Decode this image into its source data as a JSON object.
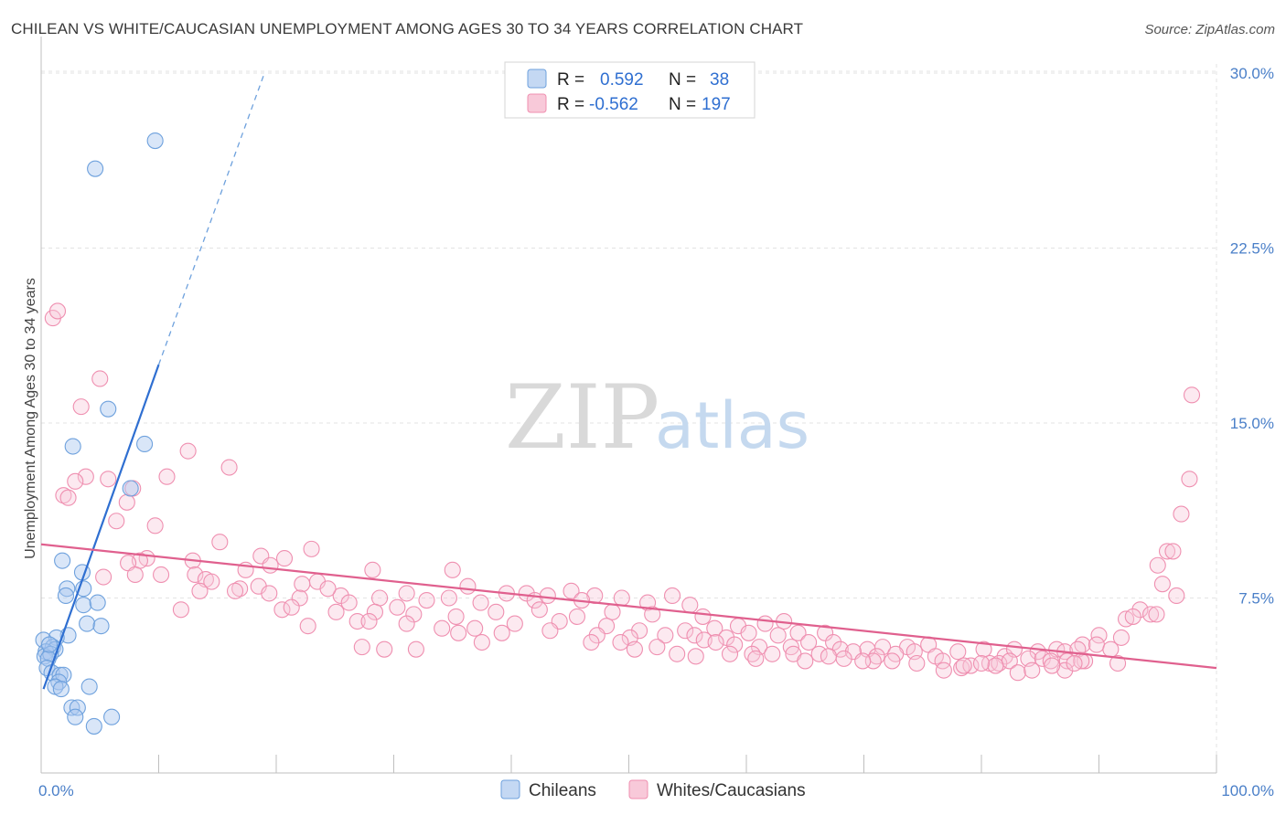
{
  "title": "CHILEAN VS WHITE/CAUCASIAN UNEMPLOYMENT AMONG AGES 30 TO 34 YEARS CORRELATION CHART",
  "source": "Source: ZipAtlas.com",
  "watermark": {
    "zip": "ZIP",
    "atlas": "atlas"
  },
  "colors": {
    "chileans": "#6ea1dd",
    "whites": "#ef8fb0",
    "chileans_line": "#2f6fd1",
    "whites_line": "#e0608e",
    "tick": "#4a7fc8"
  },
  "legend": {
    "r_label": "R =",
    "n_label": "N =",
    "rows": [
      {
        "r": "0.592",
        "n": "38"
      },
      {
        "r": "-0.562",
        "n": "197"
      }
    ]
  },
  "bottom_legend": [
    "Chileans",
    "Whites/Caucasians"
  ],
  "chart_data": {
    "type": "scatter",
    "ylabel": "Unemployment Among Ages 30 to 34 years",
    "xlim": [
      0,
      100
    ],
    "ylim": [
      0,
      30
    ],
    "x_tick_labels": [
      "0.0%",
      "100.0%"
    ],
    "y_ticks": [
      7.5,
      15.0,
      22.5,
      30.0
    ],
    "y_tick_labels": [
      "7.5%",
      "15.0%",
      "22.5%",
      "30.0%"
    ],
    "grid": true,
    "legend_position": "top-center",
    "series": [
      {
        "name": "Chileans",
        "r": 0.592,
        "n": 38,
        "trend": {
          "x0": 0.2,
          "y0": 3.6,
          "x1": 10.0,
          "y1": 17.5,
          "dash_to_x": 19.0,
          "dash_to_y": 30.0
        },
        "points": [
          [
            9.7,
            27.1
          ],
          [
            4.6,
            25.9
          ],
          [
            5.7,
            15.6
          ],
          [
            2.7,
            14.0
          ],
          [
            8.8,
            14.1
          ],
          [
            7.6,
            12.2
          ],
          [
            1.8,
            9.1
          ],
          [
            3.5,
            8.6
          ],
          [
            2.2,
            7.9
          ],
          [
            3.6,
            7.9
          ],
          [
            2.1,
            7.6
          ],
          [
            3.6,
            7.2
          ],
          [
            4.8,
            7.3
          ],
          [
            3.9,
            6.4
          ],
          [
            5.1,
            6.3
          ],
          [
            2.3,
            5.9
          ],
          [
            1.3,
            5.8
          ],
          [
            0.2,
            5.7
          ],
          [
            1.0,
            5.4
          ],
          [
            1.2,
            5.3
          ],
          [
            0.4,
            5.2
          ],
          [
            0.3,
            5.0
          ],
          [
            0.8,
            5.1
          ],
          [
            0.6,
            4.9
          ],
          [
            0.5,
            4.5
          ],
          [
            0.9,
            4.3
          ],
          [
            1.6,
            4.2
          ],
          [
            1.9,
            4.2
          ],
          [
            1.5,
            3.9
          ],
          [
            1.2,
            3.7
          ],
          [
            1.7,
            3.6
          ],
          [
            4.1,
            3.7
          ],
          [
            2.6,
            2.8
          ],
          [
            3.1,
            2.8
          ],
          [
            2.9,
            2.4
          ],
          [
            6.0,
            2.4
          ],
          [
            4.5,
            2.0
          ],
          [
            0.7,
            5.5
          ]
        ]
      },
      {
        "name": "Whites/Caucasians",
        "r": -0.562,
        "n": 197,
        "trend": {
          "x0": 0,
          "y0": 9.8,
          "x1": 100,
          "y1": 4.5
        },
        "points": [
          [
            1.0,
            19.5
          ],
          [
            1.4,
            19.8
          ],
          [
            5.0,
            16.9
          ],
          [
            3.4,
            15.7
          ],
          [
            97.9,
            16.2
          ],
          [
            12.5,
            13.8
          ],
          [
            16.0,
            13.1
          ],
          [
            3.8,
            12.7
          ],
          [
            10.7,
            12.7
          ],
          [
            5.7,
            12.6
          ],
          [
            2.9,
            12.5
          ],
          [
            7.8,
            12.2
          ],
          [
            1.9,
            11.9
          ],
          [
            2.3,
            11.8
          ],
          [
            97.7,
            12.6
          ],
          [
            7.3,
            11.6
          ],
          [
            6.4,
            10.8
          ],
          [
            9.7,
            10.6
          ],
          [
            97.0,
            11.1
          ],
          [
            15.2,
            9.9
          ],
          [
            18.7,
            9.3
          ],
          [
            20.7,
            9.2
          ],
          [
            23.0,
            9.6
          ],
          [
            9.0,
            9.2
          ],
          [
            8.4,
            9.1
          ],
          [
            12.9,
            9.1
          ],
          [
            19.5,
            8.9
          ],
          [
            95.0,
            8.9
          ],
          [
            95.8,
            9.5
          ],
          [
            96.3,
            9.5
          ],
          [
            7.4,
            9.0
          ],
          [
            8.0,
            8.5
          ],
          [
            10.2,
            8.5
          ],
          [
            13.1,
            8.5
          ],
          [
            17.4,
            8.7
          ],
          [
            5.3,
            8.4
          ],
          [
            14.0,
            8.3
          ],
          [
            23.5,
            8.2
          ],
          [
            28.2,
            8.7
          ],
          [
            35.0,
            8.7
          ],
          [
            14.5,
            8.2
          ],
          [
            16.9,
            7.9
          ],
          [
            18.5,
            8.0
          ],
          [
            22.2,
            8.1
          ],
          [
            25.5,
            7.6
          ],
          [
            31.1,
            7.7
          ],
          [
            36.3,
            8.0
          ],
          [
            39.6,
            7.7
          ],
          [
            41.3,
            7.7
          ],
          [
            45.1,
            7.8
          ],
          [
            47.1,
            7.6
          ],
          [
            53.7,
            7.6
          ],
          [
            95.4,
            8.1
          ],
          [
            13.5,
            7.8
          ],
          [
            16.5,
            7.8
          ],
          [
            19.4,
            7.7
          ],
          [
            22.0,
            7.5
          ],
          [
            24.4,
            7.9
          ],
          [
            26.2,
            7.3
          ],
          [
            28.8,
            7.5
          ],
          [
            32.8,
            7.4
          ],
          [
            34.7,
            7.5
          ],
          [
            37.4,
            7.3
          ],
          [
            42.0,
            7.4
          ],
          [
            43.1,
            7.6
          ],
          [
            46.0,
            7.4
          ],
          [
            49.4,
            7.5
          ],
          [
            51.6,
            7.3
          ],
          [
            55.2,
            7.2
          ],
          [
            96.6,
            7.6
          ],
          [
            11.9,
            7.0
          ],
          [
            20.5,
            7.0
          ],
          [
            21.3,
            7.1
          ],
          [
            25.1,
            6.9
          ],
          [
            28.4,
            6.9
          ],
          [
            30.3,
            7.1
          ],
          [
            31.7,
            6.8
          ],
          [
            35.3,
            6.7
          ],
          [
            38.7,
            6.9
          ],
          [
            42.4,
            7.0
          ],
          [
            45.6,
            6.7
          ],
          [
            48.6,
            6.9
          ],
          [
            52.0,
            6.8
          ],
          [
            56.3,
            6.7
          ],
          [
            93.5,
            7.0
          ],
          [
            94.4,
            6.8
          ],
          [
            94.9,
            6.8
          ],
          [
            22.7,
            6.3
          ],
          [
            26.9,
            6.5
          ],
          [
            27.9,
            6.5
          ],
          [
            31.1,
            6.4
          ],
          [
            34.1,
            6.2
          ],
          [
            36.9,
            6.2
          ],
          [
            40.3,
            6.4
          ],
          [
            44.1,
            6.5
          ],
          [
            48.1,
            6.3
          ],
          [
            50.9,
            6.1
          ],
          [
            54.8,
            6.1
          ],
          [
            57.3,
            6.2
          ],
          [
            59.3,
            6.3
          ],
          [
            61.6,
            6.4
          ],
          [
            63.2,
            6.5
          ],
          [
            92.3,
            6.6
          ],
          [
            92.9,
            6.7
          ],
          [
            35.5,
            6.0
          ],
          [
            39.2,
            6.0
          ],
          [
            43.3,
            6.1
          ],
          [
            47.3,
            5.9
          ],
          [
            50.1,
            5.8
          ],
          [
            53.1,
            5.9
          ],
          [
            55.6,
            5.9
          ],
          [
            58.3,
            5.8
          ],
          [
            60.2,
            6.0
          ],
          [
            62.7,
            5.9
          ],
          [
            64.4,
            6.0
          ],
          [
            66.7,
            6.0
          ],
          [
            90.0,
            5.9
          ],
          [
            91.9,
            5.8
          ],
          [
            27.3,
            5.4
          ],
          [
            29.2,
            5.3
          ],
          [
            31.9,
            5.3
          ],
          [
            37.5,
            5.6
          ],
          [
            46.8,
            5.6
          ],
          [
            49.3,
            5.6
          ],
          [
            50.5,
            5.3
          ],
          [
            52.4,
            5.4
          ],
          [
            56.4,
            5.7
          ],
          [
            57.4,
            5.6
          ],
          [
            59.0,
            5.5
          ],
          [
            61.1,
            5.4
          ],
          [
            63.8,
            5.4
          ],
          [
            65.3,
            5.6
          ],
          [
            67.4,
            5.6
          ],
          [
            68.0,
            5.3
          ],
          [
            70.3,
            5.3
          ],
          [
            71.6,
            5.4
          ],
          [
            73.7,
            5.4
          ],
          [
            75.5,
            5.5
          ],
          [
            88.6,
            5.5
          ],
          [
            89.8,
            5.5
          ],
          [
            91.0,
            5.3
          ],
          [
            54.1,
            5.1
          ],
          [
            55.7,
            5.0
          ],
          [
            58.6,
            5.1
          ],
          [
            60.5,
            5.1
          ],
          [
            62.2,
            5.1
          ],
          [
            64.0,
            5.1
          ],
          [
            66.2,
            5.1
          ],
          [
            67.0,
            5.0
          ],
          [
            69.1,
            5.2
          ],
          [
            71.1,
            5.0
          ],
          [
            72.7,
            5.1
          ],
          [
            74.3,
            5.2
          ],
          [
            76.1,
            5.0
          ],
          [
            78.0,
            5.2
          ],
          [
            80.2,
            5.3
          ],
          [
            82.0,
            5.0
          ],
          [
            82.8,
            5.3
          ],
          [
            84.8,
            5.2
          ],
          [
            86.4,
            5.3
          ],
          [
            87.1,
            5.2
          ],
          [
            88.2,
            5.3
          ],
          [
            60.8,
            4.9
          ],
          [
            65.0,
            4.8
          ],
          [
            68.3,
            4.9
          ],
          [
            70.8,
            4.8
          ],
          [
            72.4,
            4.8
          ],
          [
            74.5,
            4.7
          ],
          [
            76.7,
            4.8
          ],
          [
            78.3,
            4.5
          ],
          [
            79.1,
            4.6
          ],
          [
            80.7,
            4.7
          ],
          [
            81.5,
            4.7
          ],
          [
            82.4,
            4.8
          ],
          [
            84.0,
            4.9
          ],
          [
            85.2,
            4.9
          ],
          [
            85.9,
            4.8
          ],
          [
            87.3,
            4.8
          ],
          [
            88.8,
            4.8
          ],
          [
            76.8,
            4.4
          ],
          [
            78.5,
            4.6
          ],
          [
            81.2,
            4.6
          ],
          [
            83.1,
            4.3
          ],
          [
            84.3,
            4.4
          ],
          [
            87.1,
            4.4
          ],
          [
            88.5,
            4.8
          ],
          [
            86.0,
            4.6
          ],
          [
            87.9,
            4.7
          ],
          [
            91.6,
            4.7
          ],
          [
            80.0,
            4.7
          ],
          [
            69.9,
            4.8
          ]
        ]
      }
    ]
  }
}
